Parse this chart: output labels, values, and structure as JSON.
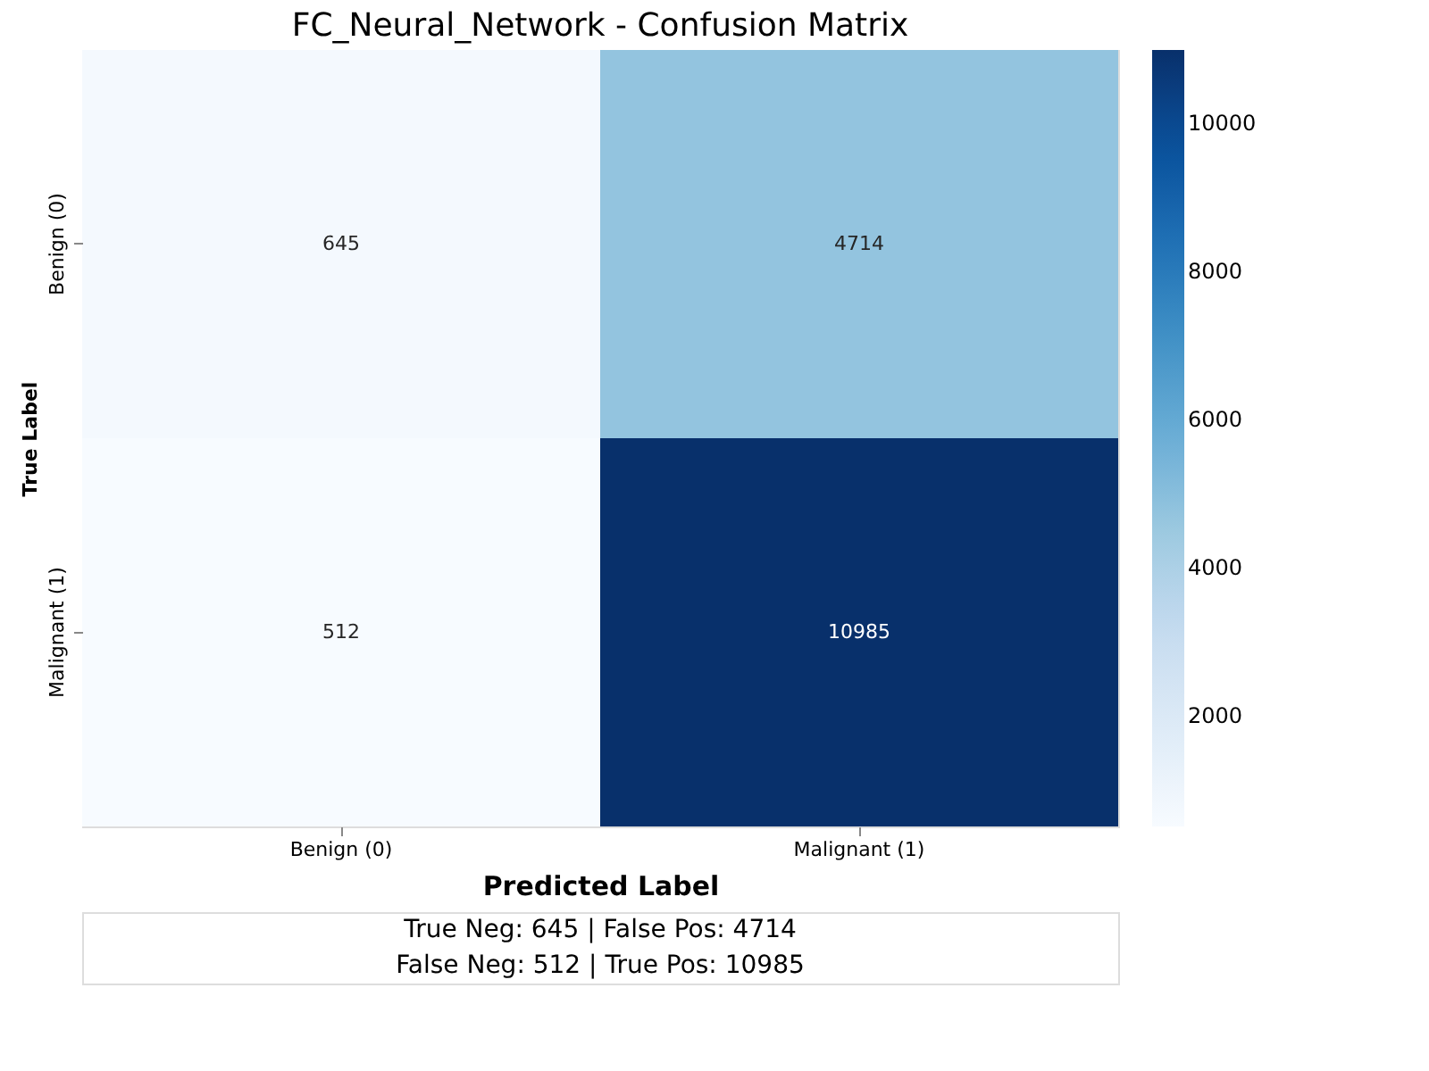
{
  "chart_data": {
    "type": "heatmap",
    "title": "FC_Neural_Network - Confusion Matrix",
    "xlabel": "Predicted Label",
    "ylabel": "True Label",
    "categories": [
      "Benign (0)",
      "Malignant (1)"
    ],
    "y_categories": [
      "Benign (0)",
      "Malignant (1)"
    ],
    "cells": [
      [
        645,
        4714
      ],
      [
        512,
        10985
      ]
    ],
    "clim": [
      512,
      10985
    ],
    "cticks": [
      2000,
      4000,
      6000,
      8000,
      10000
    ],
    "data_labels": true,
    "annotations": [
      "True Neg: 645 | False Pos: 4714",
      "False Neg: 512 | True Pos: 10985"
    ]
  }
}
